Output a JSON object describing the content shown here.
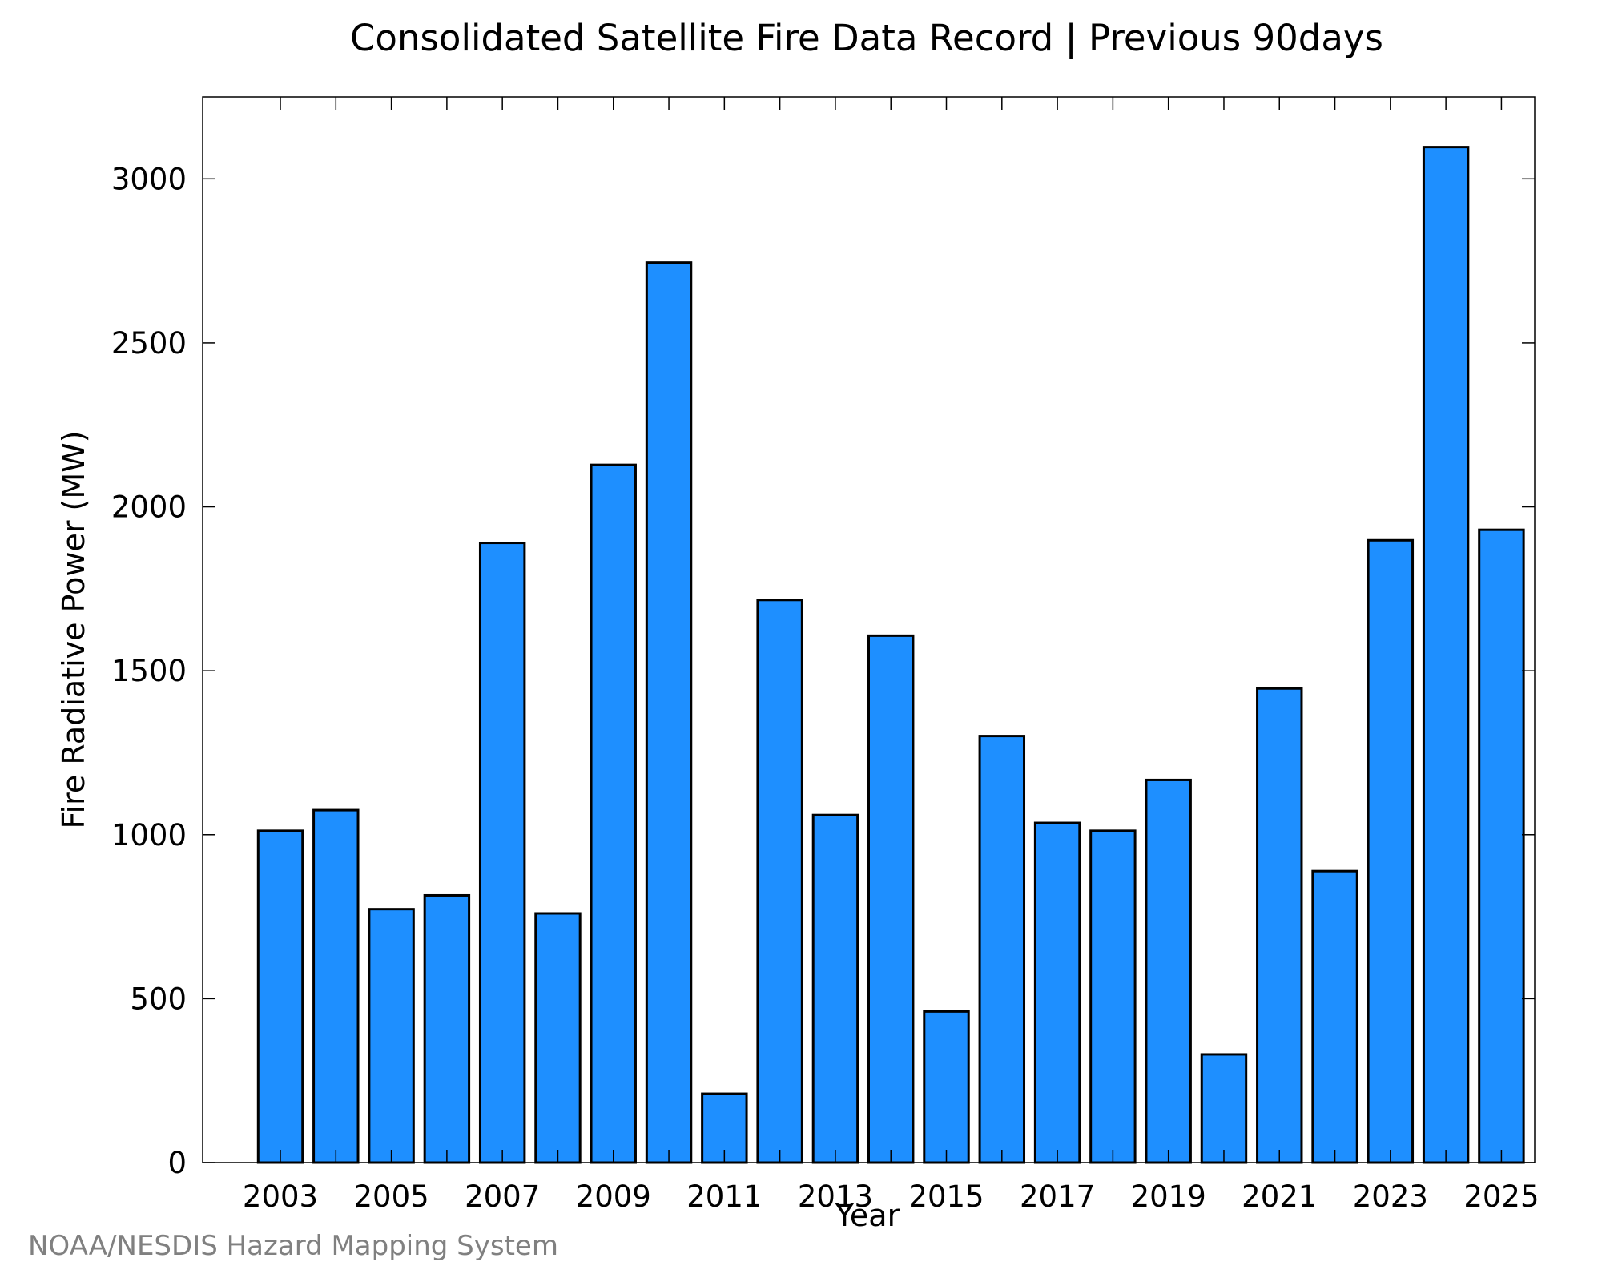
{
  "chart_data": {
    "type": "bar",
    "title": "Consolidated Satellite Fire Data Record | Previous 90days",
    "xlabel": "Year",
    "ylabel": "Fire Radiative Power (MW)",
    "categories": [
      "2003",
      "2004",
      "2005",
      "2006",
      "2007",
      "2008",
      "2009",
      "2010",
      "2011",
      "2012",
      "2013",
      "2014",
      "2015",
      "2016",
      "2017",
      "2018",
      "2019",
      "2020",
      "2021",
      "2022",
      "2023",
      "2024",
      "2025"
    ],
    "values": [
      1012,
      1075,
      773,
      815,
      1890,
      760,
      2128,
      2745,
      210,
      1716,
      1060,
      1607,
      461,
      1301,
      1036,
      1012,
      1167,
      330,
      1446,
      889,
      1898,
      3097,
      1930
    ],
    "xticks": [
      "2003",
      "2005",
      "2007",
      "2009",
      "2011",
      "2013",
      "2015",
      "2017",
      "2019",
      "2021",
      "2023",
      "2025"
    ],
    "yticks": [
      0,
      500,
      1000,
      1500,
      2000,
      2500,
      3000
    ],
    "ylim": [
      0,
      3250
    ],
    "xlim": [
      2001.6,
      2025.6
    ],
    "grid": false,
    "bar_color": "#1e8fff",
    "edge_color": "#000000"
  },
  "footer": {
    "source": "NOAA/NESDIS Hazard Mapping System"
  }
}
